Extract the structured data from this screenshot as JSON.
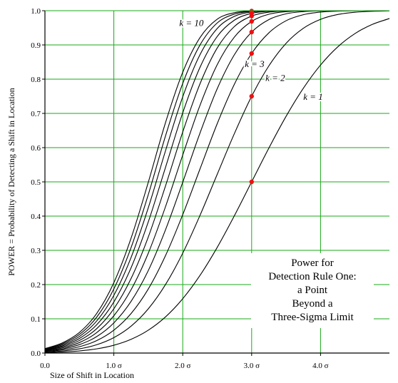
{
  "chart_data": {
    "type": "line",
    "xlabel": "Size of Shift in Location",
    "ylabel": "POWER  = Probability of Detecting a Shift in Location",
    "xlim": [
      0,
      5
    ],
    "ylim": [
      0,
      1
    ],
    "x_ticks": [
      {
        "value": 0,
        "label": "0.0"
      },
      {
        "value": 1,
        "label": "1.0 σ"
      },
      {
        "value": 2,
        "label": "2.0 σ"
      },
      {
        "value": 3,
        "label": "3.0 σ"
      },
      {
        "value": 4,
        "label": "4.0 σ"
      }
    ],
    "y_ticks": [
      {
        "value": 0.0,
        "label": "0.0"
      },
      {
        "value": 0.1,
        "label": "0.1"
      },
      {
        "value": 0.2,
        "label": "0.2"
      },
      {
        "value": 0.3,
        "label": "0.3"
      },
      {
        "value": 0.4,
        "label": "0.4"
      },
      {
        "value": 0.5,
        "label": "0.5"
      },
      {
        "value": 0.6,
        "label": "0.6"
      },
      {
        "value": 0.7,
        "label": "0.7"
      },
      {
        "value": 0.8,
        "label": "0.8"
      },
      {
        "value": 0.9,
        "label": "0.9"
      },
      {
        "value": 1.0,
        "label": "1.0"
      }
    ],
    "grid": true,
    "x": [
      0,
      0.25,
      0.5,
      0.75,
      1.0,
      1.25,
      1.5,
      1.75,
      2.0,
      2.25,
      2.5,
      2.75,
      3.0,
      3.25,
      3.5,
      3.75,
      4.0,
      4.25,
      4.5,
      4.75,
      5.0
    ],
    "series": [
      {
        "k": 1,
        "values": [
          0.0013,
          0.003,
          0.0062,
          0.0122,
          0.0228,
          0.0401,
          0.0668,
          0.1056,
          0.1587,
          0.2266,
          0.3085,
          0.4013,
          0.5,
          0.5987,
          0.6915,
          0.7734,
          0.8413,
          0.8944,
          0.9332,
          0.9599,
          0.9772
        ]
      },
      {
        "k": 2,
        "values": [
          0.0027,
          0.006,
          0.0124,
          0.0242,
          0.0451,
          0.0786,
          0.1292,
          0.2001,
          0.2918,
          0.4019,
          0.5219,
          0.6413,
          0.75,
          0.8388,
          0.9048,
          0.9486,
          0.9748,
          0.9889,
          0.9955,
          0.9984,
          0.9995
        ]
      },
      {
        "k": 3,
        "values": [
          0.004,
          0.0089,
          0.0185,
          0.0362,
          0.0669,
          0.1154,
          0.1871,
          0.2846,
          0.4043,
          0.5375,
          0.6698,
          0.7855,
          0.875,
          0.9353,
          0.9707,
          0.9883,
          0.996,
          0.9988,
          0.9997,
          0.9999,
          1.0
        ]
      },
      {
        "k": 4,
        "values": [
          0.0053,
          0.0119,
          0.0246,
          0.0479,
          0.0881,
          0.1509,
          0.241,
          0.3601,
          0.4989,
          0.6423,
          0.7719,
          0.8716,
          0.9375,
          0.974,
          0.9909,
          0.9973,
          0.9994,
          0.9999,
          1.0,
          1.0,
          1.0
        ]
      },
      {
        "k": 5,
        "values": [
          0.0066,
          0.0149,
          0.0306,
          0.0595,
          0.1089,
          0.1849,
          0.2917,
          0.4276,
          0.5784,
          0.7234,
          0.8423,
          0.9231,
          0.9688,
          0.9896,
          0.9972,
          0.9994,
          0.9999,
          1.0,
          1.0,
          1.0,
          1.0
        ]
      },
      {
        "k": 6,
        "values": [
          0.0078,
          0.0178,
          0.0366,
          0.071,
          0.1293,
          0.2176,
          0.339,
          0.4881,
          0.6457,
          0.7862,
          0.891,
          0.9539,
          0.9844,
          0.9958,
          0.9991,
          0.9998,
          1.0,
          1.0,
          1.0,
          1.0,
          1.0
        ]
      },
      {
        "k": 7,
        "values": [
          0.0091,
          0.0207,
          0.0425,
          0.0823,
          0.1491,
          0.249,
          0.3831,
          0.5423,
          0.7018,
          0.8344,
          0.9247,
          0.9724,
          0.9922,
          0.9983,
          0.9997,
          1.0,
          1.0,
          1.0,
          1.0,
          1.0,
          1.0
        ]
      },
      {
        "k": 8,
        "values": [
          0.0104,
          0.0237,
          0.0484,
          0.0934,
          0.1684,
          0.2791,
          0.4243,
          0.5909,
          0.7486,
          0.8713,
          0.948,
          0.9835,
          0.9961,
          0.9993,
          0.9999,
          1.0,
          1.0,
          1.0,
          1.0,
          1.0,
          1.0
        ]
      },
      {
        "k": 9,
        "values": [
          0.0117,
          0.0266,
          0.0543,
          0.1044,
          0.1872,
          0.3079,
          0.4628,
          0.6343,
          0.7877,
          0.8996,
          0.9641,
          0.9901,
          0.998,
          0.9997,
          1.0,
          1.0,
          1.0,
          1.0,
          1.0,
          1.0,
          1.0
        ]
      },
      {
        "k": 10,
        "values": [
          0.013,
          0.0295,
          0.0601,
          0.1152,
          0.2055,
          0.3356,
          0.4988,
          0.6731,
          0.8203,
          0.9213,
          0.9752,
          0.9941,
          0.999,
          0.9999,
          1.0,
          1.0,
          1.0,
          1.0,
          1.0,
          1.0,
          1.0
        ]
      }
    ],
    "points": [
      {
        "x": 3.0,
        "y": 0.5
      },
      {
        "x": 3.0,
        "y": 0.75
      },
      {
        "x": 3.0,
        "y": 0.875
      },
      {
        "x": 3.0,
        "y": 0.9375
      },
      {
        "x": 3.0,
        "y": 0.9688
      },
      {
        "x": 3.0,
        "y": 0.9844
      },
      {
        "x": 3.0,
        "y": 0.9922
      },
      {
        "x": 3.0,
        "y": 0.9961
      },
      {
        "x": 3.0,
        "y": 0.998
      },
      {
        "x": 3.0,
        "y": 0.999
      }
    ],
    "curve_labels": [
      {
        "text": "k = 10",
        "x": 1.95,
        "y": 0.955
      },
      {
        "text": "k = 3",
        "x": 2.9,
        "y": 0.835
      },
      {
        "text": "k = 2",
        "x": 3.2,
        "y": 0.795
      },
      {
        "text": "k = 1",
        "x": 3.75,
        "y": 0.74
      }
    ],
    "annotation": {
      "lines": [
        "Power for",
        "Detection Rule One:",
        "a Point",
        "Beyond a",
        "Three-Sigma Limit"
      ]
    },
    "colors": {
      "grid": "#1aaa1a",
      "curve": "#000000",
      "point": "#ee1111",
      "frame": "#000000"
    }
  }
}
